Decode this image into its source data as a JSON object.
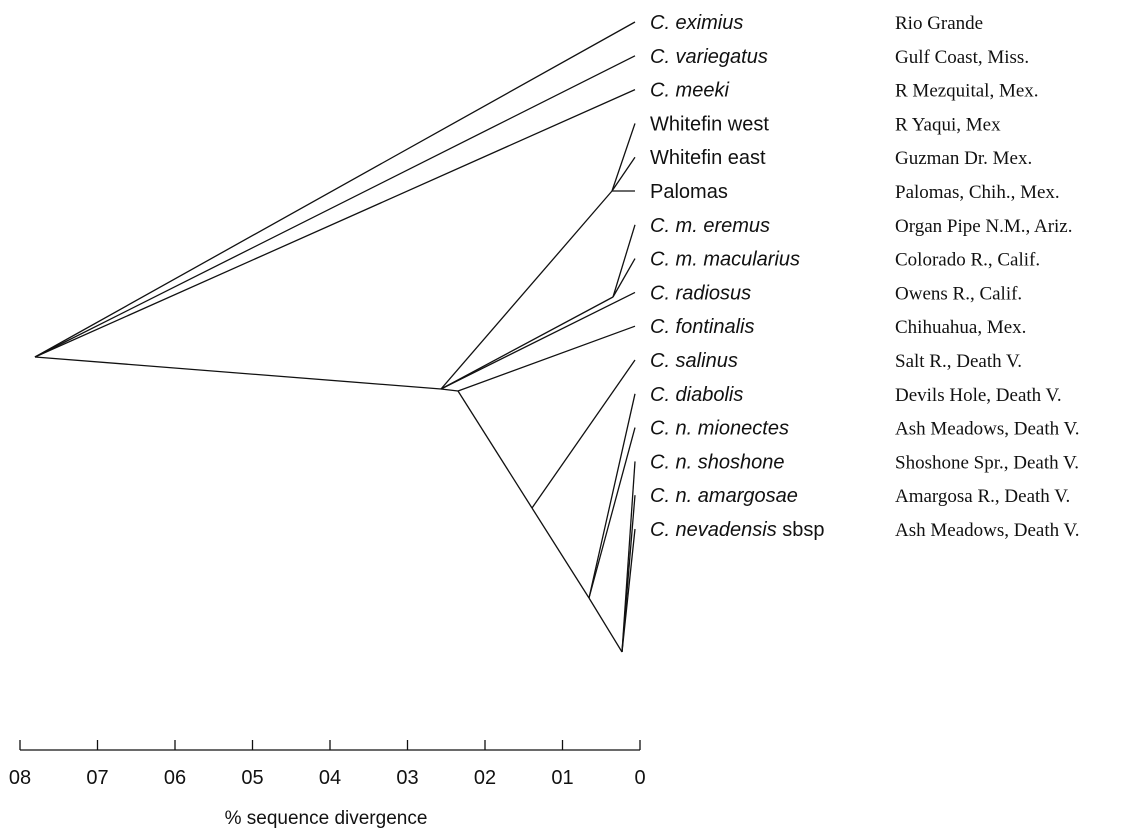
{
  "colors": {
    "ink": "#111111",
    "background": "#ffffff"
  },
  "tree": {
    "leaves": [
      {
        "id": "eximius",
        "name_italic": "C. eximius",
        "name_plain": "",
        "locality": "Rio Grande"
      },
      {
        "id": "variegatus",
        "name_italic": "C. variegatus",
        "name_plain": "",
        "locality": "Gulf Coast, Miss."
      },
      {
        "id": "meeki",
        "name_italic": "C. meeki",
        "name_plain": "",
        "locality": "R Mezquital, Mex."
      },
      {
        "id": "whitefin_west",
        "name_italic": "",
        "name_plain": "Whitefin west",
        "locality": "R Yaqui, Mex"
      },
      {
        "id": "whitefin_east",
        "name_italic": "",
        "name_plain": "Whitefin east",
        "locality": "Guzman Dr. Mex."
      },
      {
        "id": "palomas",
        "name_italic": "",
        "name_plain": "Palomas",
        "locality": "Palomas, Chih., Mex."
      },
      {
        "id": "m_eremus",
        "name_italic": "C. m. eremus",
        "name_plain": "",
        "locality": "Organ Pipe N.M., Ariz."
      },
      {
        "id": "m_macularius",
        "name_italic": "C. m. macularius",
        "name_plain": "",
        "locality": "Colorado R., Calif."
      },
      {
        "id": "radiosus",
        "name_italic": "C. radiosus",
        "name_plain": "",
        "locality": "Owens R., Calif."
      },
      {
        "id": "fontinalis",
        "name_italic": "C. fontinalis",
        "name_plain": "",
        "locality": "Chihuahua, Mex."
      },
      {
        "id": "salinus",
        "name_italic": "C. salinus",
        "name_plain": "",
        "locality": "Salt R., Death V."
      },
      {
        "id": "diabolis",
        "name_italic": "C. diabolis",
        "name_plain": "",
        "locality": "Devils Hole, Death V."
      },
      {
        "id": "n_mionectes",
        "name_italic": "C. n. mionectes",
        "name_plain": "",
        "locality": "Ash Meadows, Death V."
      },
      {
        "id": "n_shoshone",
        "name_italic": "C. n. shoshone",
        "name_plain": "",
        "locality": "Shoshone Spr., Death V."
      },
      {
        "id": "n_amargosae",
        "name_italic": "C. n. amargosae",
        "name_plain": "",
        "locality": "Amargosa R., Death V."
      },
      {
        "id": "nevadensis_sbsp",
        "name_italic": "C. nevadensis",
        "name_plain": " sbsp",
        "locality": "Ash Meadows, Death V."
      }
    ],
    "branches": [
      {
        "from": "root",
        "to": "leaf:eximius"
      },
      {
        "from": "root",
        "to": "leaf:variegatus"
      },
      {
        "from": "root",
        "to": "leaf:meeki"
      },
      {
        "from": "root",
        "to": "n1"
      },
      {
        "from": "n1",
        "to": "nW"
      },
      {
        "from": "nW",
        "to": "leaf:whitefin_west"
      },
      {
        "from": "nW",
        "to": "leaf:whitefin_east"
      },
      {
        "from": "nW",
        "to": "leaf:palomas"
      },
      {
        "from": "n1",
        "to": "nM"
      },
      {
        "from": "nM",
        "to": "leaf:m_eremus"
      },
      {
        "from": "nM",
        "to": "leaf:m_macularius"
      },
      {
        "from": "n1",
        "to": "leaf:radiosus"
      },
      {
        "from": "n1",
        "to": "n2"
      },
      {
        "from": "n2",
        "to": "leaf:fontinalis"
      },
      {
        "from": "n2",
        "to": "nS"
      },
      {
        "from": "nS",
        "to": "leaf:salinus"
      },
      {
        "from": "nS",
        "to": "nD"
      },
      {
        "from": "nD",
        "to": "leaf:diabolis"
      },
      {
        "from": "nD",
        "to": "leaf:n_mionectes"
      },
      {
        "from": "nD",
        "to": "nA"
      },
      {
        "from": "nA",
        "to": "leaf:n_shoshone"
      },
      {
        "from": "nA",
        "to": "leaf:n_amargosae"
      },
      {
        "from": "nA",
        "to": "leaf:nevadensis_sbsp"
      }
    ]
  },
  "axis": {
    "title": "% sequence divergence",
    "ticks": [
      {
        "value": 8,
        "label": "08"
      },
      {
        "value": 7,
        "label": "07"
      },
      {
        "value": 6,
        "label": "06"
      },
      {
        "value": 5,
        "label": "05"
      },
      {
        "value": 4,
        "label": "04"
      },
      {
        "value": 3,
        "label": "03"
      },
      {
        "value": 2,
        "label": "02"
      },
      {
        "value": 1,
        "label": "01"
      },
      {
        "value": 0,
        "label": "0"
      }
    ]
  }
}
